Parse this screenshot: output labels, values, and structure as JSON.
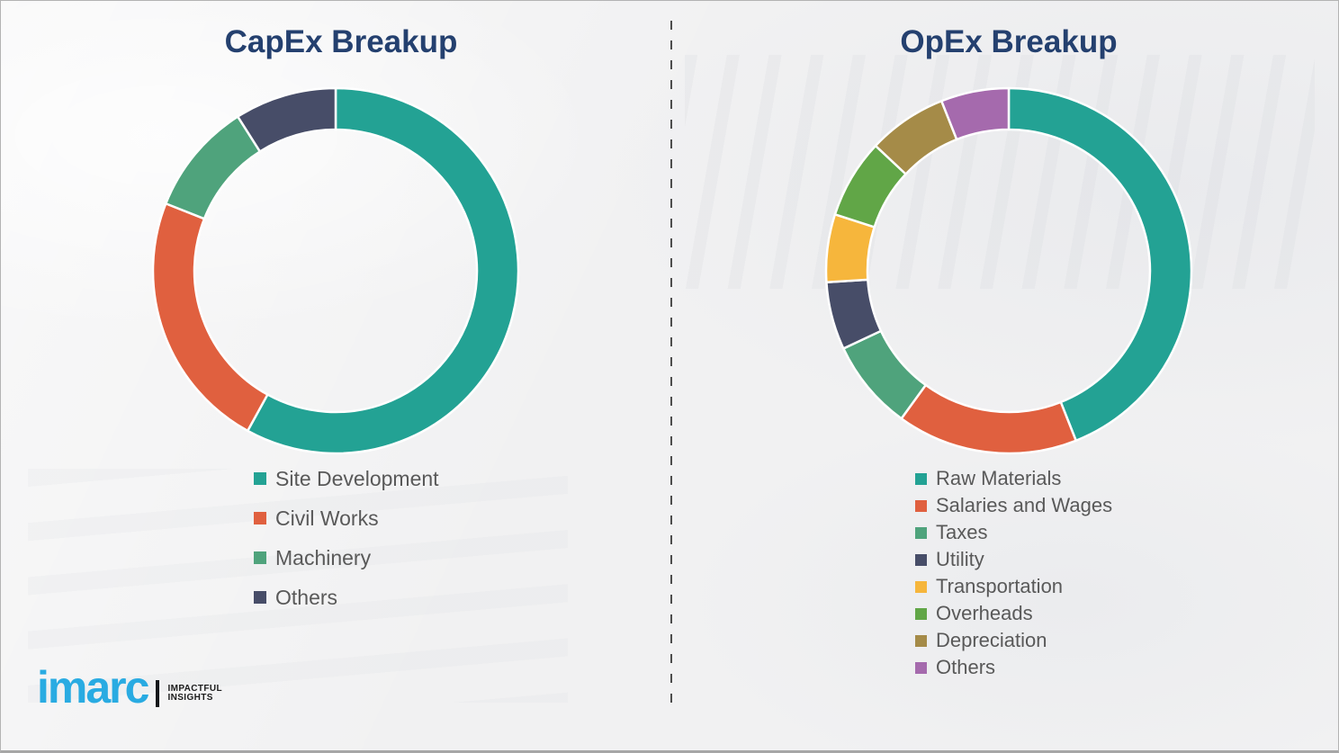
{
  "page": {
    "background_color": "#f1f1f2",
    "title_color": "#24406F",
    "legend_text_color": "#595959",
    "divider_color": "#4d4d4d"
  },
  "chart_data": [
    {
      "type": "pie",
      "subtype": "donut",
      "title": "CapEx Breakup",
      "start_angle_deg": 0,
      "direction": "clockwise",
      "legend_position": "below-left",
      "segments": [
        {
          "label": "Site Development",
          "value_pct": 58,
          "color": "#23A294"
        },
        {
          "label": "Civil Works",
          "value_pct": 23,
          "color": "#E0603F"
        },
        {
          "label": "Machinery",
          "value_pct": 10,
          "color": "#4FA37C"
        },
        {
          "label": "Others",
          "value_pct": 9,
          "color": "#474D68"
        }
      ]
    },
    {
      "type": "pie",
      "subtype": "donut",
      "title": "OpEx Breakup",
      "start_angle_deg": 0,
      "direction": "clockwise",
      "legend_position": "below-left",
      "segments": [
        {
          "label": "Raw Materials",
          "value_pct": 44,
          "color": "#23A294"
        },
        {
          "label": "Salaries and Wages",
          "value_pct": 16,
          "color": "#E0603F"
        },
        {
          "label": "Taxes",
          "value_pct": 8,
          "color": "#4FA37C"
        },
        {
          "label": "Utility",
          "value_pct": 6,
          "color": "#474D68"
        },
        {
          "label": "Transportation",
          "value_pct": 6,
          "color": "#F6B63C"
        },
        {
          "label": "Overheads",
          "value_pct": 7,
          "color": "#61A647"
        },
        {
          "label": "Depreciation",
          "value_pct": 7,
          "color": "#A58B48"
        },
        {
          "label": "Others",
          "value_pct": 6,
          "color": "#A56AAD"
        }
      ]
    }
  ],
  "footer": {
    "logo_text": "imarc",
    "logo_color": "#29ABE2",
    "tagline_line1": "IMPACTFUL",
    "tagline_line2": "INSIGHTS"
  }
}
